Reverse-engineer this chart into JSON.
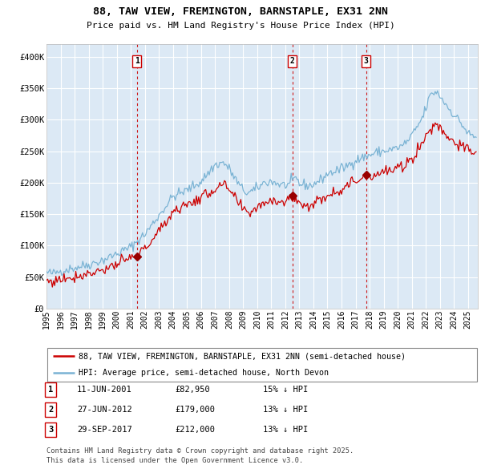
{
  "title_line1": "88, TAW VIEW, FREMINGTON, BARNSTAPLE, EX31 2NN",
  "title_line2": "Price paid vs. HM Land Registry's House Price Index (HPI)",
  "background_color": "#dce9f5",
  "plot_bg_color": "#dce9f5",
  "hpi_color": "#7ab3d4",
  "price_color": "#cc0000",
  "sale_marker_color": "#990000",
  "vline_color": "#cc0000",
  "grid_color": "#ffffff",
  "sales": [
    {
      "date_num": 2001.44,
      "price": 82950,
      "label": "1",
      "date_str": "11-JUN-2001",
      "pct": "15% ↓ HPI"
    },
    {
      "date_num": 2012.49,
      "price": 179000,
      "label": "2",
      "date_str": "27-JUN-2012",
      "pct": "13% ↓ HPI"
    },
    {
      "date_num": 2017.74,
      "price": 212000,
      "label": "3",
      "date_str": "29-SEP-2017",
      "pct": "13% ↓ HPI"
    }
  ],
  "legend_entries": [
    "88, TAW VIEW, FREMINGTON, BARNSTAPLE, EX31 2NN (semi-detached house)",
    "HPI: Average price, semi-detached house, North Devon"
  ],
  "footer_line1": "Contains HM Land Registry data © Crown copyright and database right 2025.",
  "footer_line2": "This data is licensed under the Open Government Licence v3.0.",
  "ylim": [
    0,
    420000
  ],
  "xlim_start": 1995.0,
  "xlim_end": 2025.7,
  "yticks": [
    0,
    50000,
    100000,
    150000,
    200000,
    250000,
    300000,
    350000,
    400000
  ],
  "ytick_labels": [
    "£0",
    "£50K",
    "£100K",
    "£150K",
    "£200K",
    "£250K",
    "£300K",
    "£350K",
    "£400K"
  ],
  "xtick_years": [
    1995,
    1996,
    1997,
    1998,
    1999,
    2000,
    2001,
    2002,
    2003,
    2004,
    2005,
    2006,
    2007,
    2008,
    2009,
    2010,
    2011,
    2012,
    2013,
    2014,
    2015,
    2016,
    2017,
    2018,
    2019,
    2020,
    2021,
    2022,
    2023,
    2024,
    2025
  ]
}
